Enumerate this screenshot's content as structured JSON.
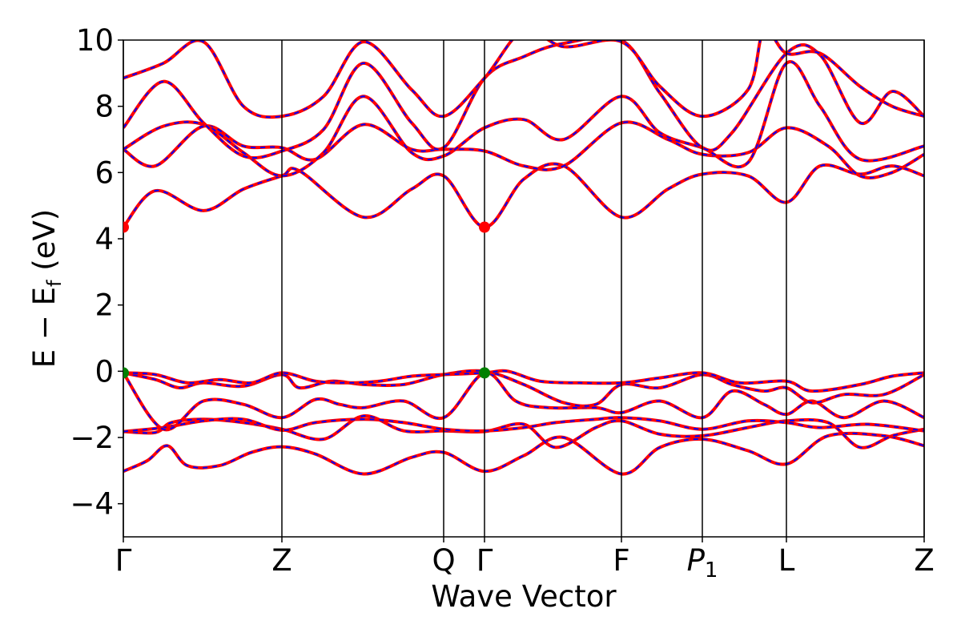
{
  "chart_data": {
    "type": "line",
    "xlabel": "Wave Vector",
    "ylabel_main": "E − E",
    "ylabel_sub": "f",
    "ylabel_unit": " (eV)",
    "ylim": [
      -5,
      10
    ],
    "yticks": [
      -4,
      -2,
      0,
      2,
      4,
      6,
      8,
      10
    ],
    "ytick_labels": [
      "−4",
      "−2",
      "0",
      "2",
      "4",
      "6",
      "8",
      "10"
    ],
    "xlim": [
      0,
      1
    ],
    "kpoints": [
      {
        "label": "Γ",
        "x": 0.0
      },
      {
        "label": "Z",
        "x": 0.198
      },
      {
        "label": "Q",
        "x": 0.4
      },
      {
        "label": "Γ",
        "x": 0.451
      },
      {
        "label": "F",
        "x": 0.622
      },
      {
        "label": "P",
        "sub": "1",
        "italic": true,
        "x": 0.723
      },
      {
        "label": "L",
        "x": 0.828
      },
      {
        "label": "Z",
        "x": 1.0
      }
    ],
    "series_style": {
      "main_color": "#ff0000",
      "overlay_color": "#0000ff",
      "overlay_dash": "dashed"
    },
    "bands": [
      [
        [
          0.0,
          -3.02
        ],
        [
          0.03,
          -2.7
        ],
        [
          0.055,
          -2.25
        ],
        [
          0.08,
          -2.85
        ],
        [
          0.12,
          -2.85
        ],
        [
          0.16,
          -2.45
        ],
        [
          0.198,
          -2.28
        ],
        [
          0.24,
          -2.5
        ],
        [
          0.3,
          -3.1
        ],
        [
          0.36,
          -2.6
        ],
        [
          0.4,
          -2.45
        ],
        [
          0.451,
          -3.02
        ],
        [
          0.5,
          -2.55
        ],
        [
          0.55,
          -2.0
        ],
        [
          0.622,
          -3.1
        ],
        [
          0.67,
          -2.3
        ],
        [
          0.723,
          -2.05
        ],
        [
          0.78,
          -2.4
        ],
        [
          0.828,
          -2.8
        ],
        [
          0.88,
          -1.95
        ],
        [
          0.95,
          -1.95
        ],
        [
          1.0,
          -2.25
        ]
      ],
      [
        [
          0.0,
          -1.82
        ],
        [
          0.04,
          -1.85
        ],
        [
          0.06,
          -1.55
        ],
        [
          0.1,
          -1.45
        ],
        [
          0.15,
          -1.55
        ],
        [
          0.198,
          -1.75
        ],
        [
          0.25,
          -2.05
        ],
        [
          0.3,
          -1.35
        ],
        [
          0.35,
          -1.8
        ],
        [
          0.4,
          -1.8
        ],
        [
          0.451,
          -1.82
        ],
        [
          0.5,
          -1.6
        ],
        [
          0.54,
          -2.3
        ],
        [
          0.59,
          -1.7
        ],
        [
          0.622,
          -1.5
        ],
        [
          0.67,
          -1.9
        ],
        [
          0.723,
          -1.95
        ],
        [
          0.78,
          -1.7
        ],
        [
          0.828,
          -1.5
        ],
        [
          0.88,
          -1.55
        ],
        [
          0.92,
          -2.3
        ],
        [
          0.96,
          -1.95
        ],
        [
          1.0,
          -1.75
        ]
      ],
      [
        [
          0.0,
          -1.82
        ],
        [
          0.05,
          -1.7
        ],
        [
          0.1,
          -1.5
        ],
        [
          0.15,
          -1.45
        ],
        [
          0.198,
          -1.78
        ],
        [
          0.24,
          -1.55
        ],
        [
          0.3,
          -1.45
        ],
        [
          0.35,
          -1.55
        ],
        [
          0.4,
          -1.75
        ],
        [
          0.451,
          -1.8
        ],
        [
          0.5,
          -1.7
        ],
        [
          0.54,
          -1.55
        ],
        [
          0.59,
          -1.45
        ],
        [
          0.622,
          -1.4
        ],
        [
          0.67,
          -1.5
        ],
        [
          0.723,
          -1.75
        ],
        [
          0.78,
          -1.5
        ],
        [
          0.828,
          -1.55
        ],
        [
          0.87,
          -1.7
        ],
        [
          0.93,
          -1.6
        ],
        [
          1.0,
          -1.8
        ]
      ],
      [
        [
          0.0,
          -0.05
        ],
        [
          0.05,
          -1.75
        ],
        [
          0.1,
          -0.9
        ],
        [
          0.15,
          -1.0
        ],
        [
          0.198,
          -1.4
        ],
        [
          0.24,
          -0.85
        ],
        [
          0.27,
          -1.0
        ],
        [
          0.3,
          -1.1
        ],
        [
          0.35,
          -0.9
        ],
        [
          0.4,
          -1.4
        ],
        [
          0.451,
          -0.05
        ],
        [
          0.49,
          -0.9
        ],
        [
          0.53,
          -1.1
        ],
        [
          0.59,
          -1.1
        ],
        [
          0.622,
          -1.25
        ],
        [
          0.67,
          -0.9
        ],
        [
          0.723,
          -1.4
        ],
        [
          0.76,
          -0.6
        ],
        [
          0.8,
          -1.0
        ],
        [
          0.828,
          -1.3
        ],
        [
          0.86,
          -0.9
        ],
        [
          0.9,
          -1.4
        ],
        [
          0.95,
          -0.9
        ],
        [
          1.0,
          -1.4
        ]
      ],
      [
        [
          0.0,
          -0.05
        ],
        [
          0.04,
          -0.25
        ],
        [
          0.07,
          -0.5
        ],
        [
          0.1,
          -0.35
        ],
        [
          0.15,
          -0.45
        ],
        [
          0.198,
          -0.1
        ],
        [
          0.22,
          -0.5
        ],
        [
          0.26,
          -0.3
        ],
        [
          0.3,
          -0.4
        ],
        [
          0.35,
          -0.4
        ],
        [
          0.4,
          -0.1
        ],
        [
          0.451,
          0.0
        ],
        [
          0.5,
          -0.4
        ],
        [
          0.55,
          -0.95
        ],
        [
          0.59,
          -1.0
        ],
        [
          0.622,
          -0.4
        ],
        [
          0.67,
          -0.5
        ],
        [
          0.723,
          -0.1
        ],
        [
          0.76,
          -0.4
        ],
        [
          0.8,
          -0.6
        ],
        [
          0.828,
          -0.5
        ],
        [
          0.86,
          -0.95
        ],
        [
          0.9,
          -0.7
        ],
        [
          0.95,
          -0.7
        ],
        [
          1.0,
          -0.1
        ]
      ],
      [
        [
          0.0,
          -0.05
        ],
        [
          0.04,
          -0.1
        ],
        [
          0.08,
          -0.35
        ],
        [
          0.12,
          -0.25
        ],
        [
          0.16,
          -0.35
        ],
        [
          0.198,
          -0.05
        ],
        [
          0.24,
          -0.3
        ],
        [
          0.28,
          -0.35
        ],
        [
          0.32,
          -0.3
        ],
        [
          0.36,
          -0.15
        ],
        [
          0.4,
          -0.1
        ],
        [
          0.451,
          -0.05
        ],
        [
          0.48,
          0.0
        ],
        [
          0.52,
          -0.3
        ],
        [
          0.57,
          -0.35
        ],
        [
          0.622,
          -0.35
        ],
        [
          0.67,
          -0.2
        ],
        [
          0.723,
          -0.05
        ],
        [
          0.77,
          -0.35
        ],
        [
          0.828,
          -0.3
        ],
        [
          0.86,
          -0.6
        ],
        [
          0.92,
          -0.4
        ],
        [
          0.96,
          -0.15
        ],
        [
          1.0,
          -0.05
        ]
      ],
      [
        [
          0.0,
          4.35
        ],
        [
          0.04,
          5.45
        ],
        [
          0.1,
          4.85
        ],
        [
          0.15,
          5.5
        ],
        [
          0.198,
          5.9
        ],
        [
          0.22,
          6.05
        ],
        [
          0.3,
          4.65
        ],
        [
          0.36,
          5.5
        ],
        [
          0.4,
          5.9
        ],
        [
          0.451,
          4.35
        ],
        [
          0.5,
          5.8
        ],
        [
          0.55,
          6.2
        ],
        [
          0.622,
          4.65
        ],
        [
          0.68,
          5.5
        ],
        [
          0.723,
          5.95
        ],
        [
          0.78,
          5.9
        ],
        [
          0.828,
          5.1
        ],
        [
          0.87,
          6.2
        ],
        [
          0.92,
          5.95
        ],
        [
          0.96,
          6.2
        ],
        [
          1.0,
          5.9
        ]
      ],
      [
        [
          0.0,
          6.7
        ],
        [
          0.04,
          6.2
        ],
        [
          0.1,
          7.4
        ],
        [
          0.15,
          6.8
        ],
        [
          0.198,
          6.75
        ],
        [
          0.24,
          6.4
        ],
        [
          0.3,
          7.45
        ],
        [
          0.36,
          6.7
        ],
        [
          0.4,
          6.7
        ],
        [
          0.451,
          6.65
        ],
        [
          0.5,
          6.2
        ],
        [
          0.55,
          6.2
        ],
        [
          0.622,
          7.5
        ],
        [
          0.68,
          7.0
        ],
        [
          0.723,
          6.55
        ],
        [
          0.78,
          6.6
        ],
        [
          0.828,
          7.35
        ],
        [
          0.88,
          6.8
        ],
        [
          0.92,
          5.9
        ],
        [
          0.96,
          6.0
        ],
        [
          1.0,
          6.55
        ]
      ],
      [
        [
          0.0,
          6.7
        ],
        [
          0.05,
          7.4
        ],
        [
          0.1,
          7.45
        ],
        [
          0.15,
          6.6
        ],
        [
          0.198,
          5.9
        ],
        [
          0.25,
          6.6
        ],
        [
          0.3,
          8.3
        ],
        [
          0.36,
          6.6
        ],
        [
          0.4,
          6.5
        ],
        [
          0.451,
          7.35
        ],
        [
          0.5,
          7.6
        ],
        [
          0.55,
          7.0
        ],
        [
          0.622,
          8.3
        ],
        [
          0.67,
          7.2
        ],
        [
          0.723,
          6.75
        ],
        [
          0.78,
          6.3
        ],
        [
          0.828,
          9.3
        ],
        [
          0.87,
          8.0
        ],
        [
          0.92,
          6.4
        ],
        [
          1.0,
          6.8
        ]
      ],
      [
        [
          0.0,
          7.35
        ],
        [
          0.05,
          8.75
        ],
        [
          0.1,
          7.5
        ],
        [
          0.15,
          6.5
        ],
        [
          0.198,
          6.65
        ],
        [
          0.25,
          7.3
        ],
        [
          0.3,
          9.3
        ],
        [
          0.36,
          7.5
        ],
        [
          0.4,
          6.75
        ],
        [
          0.451,
          8.85
        ],
        [
          0.5,
          9.5
        ],
        [
          0.55,
          9.9
        ],
        [
          0.622,
          10.0
        ],
        [
          0.67,
          8.4
        ],
        [
          0.723,
          6.75
        ],
        [
          0.76,
          7.2
        ],
        [
          0.828,
          9.6
        ],
        [
          0.87,
          9.55
        ],
        [
          0.92,
          7.5
        ],
        [
          0.96,
          8.45
        ],
        [
          1.0,
          7.7
        ]
      ],
      [
        [
          0.0,
          8.85
        ],
        [
          0.05,
          9.3
        ],
        [
          0.1,
          9.95
        ],
        [
          0.15,
          8.0
        ],
        [
          0.198,
          7.7
        ],
        [
          0.25,
          8.3
        ],
        [
          0.3,
          9.95
        ],
        [
          0.36,
          8.5
        ],
        [
          0.4,
          7.7
        ],
        [
          0.451,
          8.85
        ],
        [
          0.5,
          10.3
        ],
        [
          0.55,
          9.8
        ],
        [
          0.622,
          9.95
        ],
        [
          0.67,
          8.6
        ],
        [
          0.723,
          7.7
        ],
        [
          0.78,
          8.5
        ],
        [
          0.8,
          10.3
        ],
        [
          0.828,
          9.6
        ],
        [
          0.87,
          9.6
        ],
        [
          0.92,
          8.6
        ],
        [
          0.96,
          8.0
        ],
        [
          1.0,
          7.7
        ]
      ]
    ],
    "markers": [
      {
        "x": 0.0,
        "y": 4.35,
        "color": "#ff0000"
      },
      {
        "x": 0.451,
        "y": 4.35,
        "color": "#ff0000"
      },
      {
        "x": 0.0,
        "y": -0.05,
        "color": "#008000"
      },
      {
        "x": 0.451,
        "y": -0.05,
        "color": "#008000"
      }
    ]
  }
}
